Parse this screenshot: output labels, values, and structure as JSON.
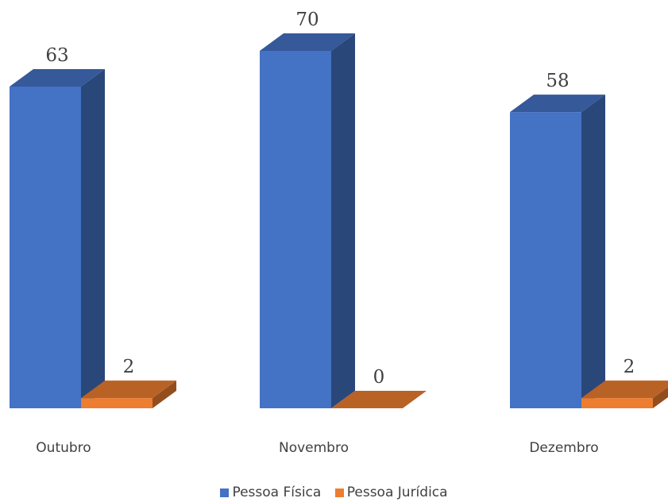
{
  "chart_data": {
    "type": "bar",
    "categories": [
      "Outubro",
      "Novembro",
      "Dezembro"
    ],
    "series": [
      {
        "name": "Pessoa Física",
        "values": [
          63,
          70,
          58
        ],
        "color": "#4472C4"
      },
      {
        "name": "Pessoa Jurídica",
        "values": [
          2,
          0,
          2
        ],
        "color": "#ED7D31"
      }
    ],
    "title": "",
    "xlabel": "",
    "ylabel": "",
    "ylim": [
      0,
      70
    ],
    "legend_position": "bottom",
    "grid": false,
    "style": "3d-column"
  }
}
